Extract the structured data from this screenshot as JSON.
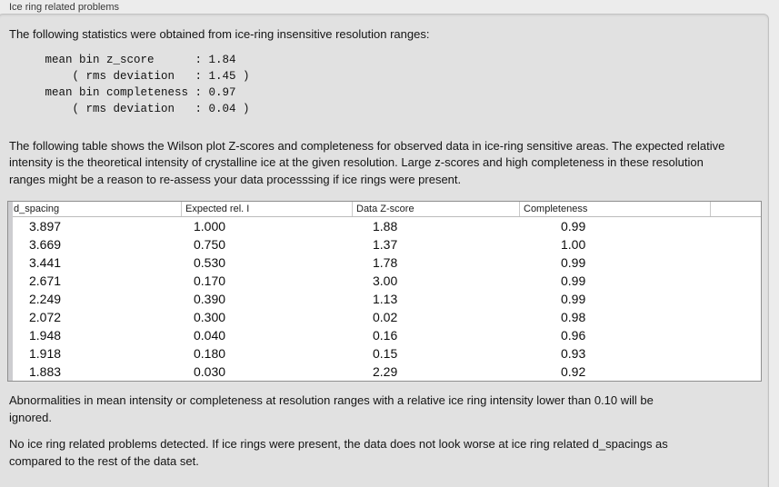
{
  "section": {
    "title": "Ice ring related problems"
  },
  "stats": {
    "intro": "The following statistics were obtained from ice-ring insensitive resolution ranges:",
    "block": "     mean bin z_score      : 1.84\n         ( rms deviation   : 1.45 )\n     mean bin completeness : 0.97\n         ( rms deviation   : 0.04 )",
    "mean_bin_z_score": "1.84",
    "z_score_rms_deviation": "1.45",
    "mean_bin_completeness": "0.97",
    "completeness_rms_deviation": "0.04"
  },
  "table": {
    "intro": "The following table shows the Wilson plot Z-scores and completeness for observed data in ice-ring sensitive areas. The expected relative intensity is the theoretical intensity of crystalline ice at the given resolution. Large z-scores and high completeness in these resolution ranges might be a reason to re-assess your data processsing if ice rings were present.",
    "columns": [
      "d_spacing",
      "Expected rel. I",
      "Data Z-score",
      "Completeness"
    ],
    "rows": [
      [
        "3.897",
        "1.000",
        "1.88",
        "0.99"
      ],
      [
        "3.669",
        "0.750",
        "1.37",
        "1.00"
      ],
      [
        "3.441",
        "0.530",
        "1.78",
        "0.99"
      ],
      [
        "2.671",
        "0.170",
        "3.00",
        "0.99"
      ],
      [
        "2.249",
        "0.390",
        "1.13",
        "0.99"
      ],
      [
        "2.072",
        "0.300",
        "0.02",
        "0.98"
      ],
      [
        "1.948",
        "0.040",
        "0.16",
        "0.96"
      ],
      [
        "1.918",
        "0.180",
        "0.15",
        "0.93"
      ],
      [
        "1.883",
        "0.030",
        "2.29",
        "0.92"
      ]
    ]
  },
  "notes": {
    "abnormalities": "Abnormalities in mean intensity or completeness at resolution ranges with a relative ice ring intensity lower than 0.10 will be ignored.",
    "conclusion": "No ice ring related problems detected. If ice rings were present, the data does not look worse at ice ring related d_spacings as compared to the rest of the data set."
  },
  "colors": {
    "page_bg": "#ececec",
    "panel_bg": "#e1e1e1",
    "panel_border": "#c2c2c2",
    "table_bg": "#ffffff",
    "table_border": "#8f8f8f",
    "text": "#141414"
  }
}
